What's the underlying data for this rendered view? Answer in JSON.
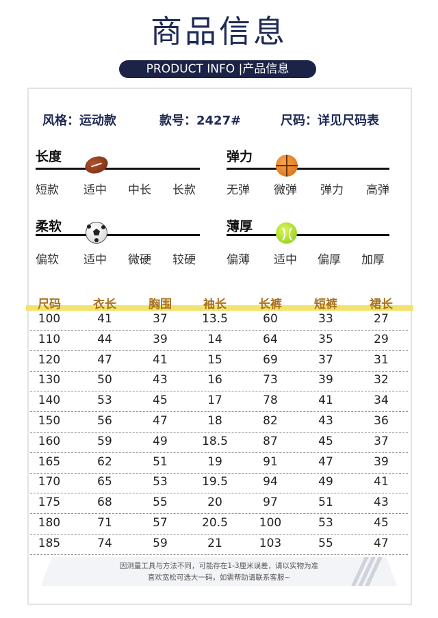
{
  "header": {
    "title": "商品信息",
    "subtitle": "PRODUCT INFO |产品信息"
  },
  "specs": {
    "style": "风格：运动款",
    "model": "款号：2427#",
    "size": "尺码：详见尺码表"
  },
  "attributes": {
    "length": {
      "title": "长度",
      "options": [
        "短款",
        "适中",
        "中长",
        "长款"
      ],
      "selected": "适中",
      "ball": "football-icon"
    },
    "elasticity": {
      "title": "弹力",
      "options": [
        "无弹",
        "微弹",
        "弹力",
        "高弹"
      ],
      "selected": "微弹",
      "ball": "basketball-icon"
    },
    "softness": {
      "title": "柔软",
      "options": [
        "偏软",
        "适中",
        "微硬",
        "较硬"
      ],
      "selected": "适中",
      "ball": "soccer-ball-icon"
    },
    "thickness": {
      "title": "薄厚",
      "options": [
        "偏薄",
        "适中",
        "偏厚",
        "加厚"
      ],
      "selected": "适中",
      "ball": "tennis-ball-icon"
    }
  },
  "size_table": {
    "headers": [
      "尺码",
      "衣长",
      "胸围",
      "袖长",
      "长裤",
      "短裤",
      "裙长"
    ],
    "rows": [
      [
        "100",
        "41",
        "37",
        "13.5",
        "60",
        "33",
        "27"
      ],
      [
        "110",
        "44",
        "39",
        "14",
        "64",
        "35",
        "29"
      ],
      [
        "120",
        "47",
        "41",
        "15",
        "69",
        "37",
        "31"
      ],
      [
        "130",
        "50",
        "43",
        "16",
        "73",
        "39",
        "32"
      ],
      [
        "140",
        "53",
        "45",
        "17",
        "78",
        "41",
        "34"
      ],
      [
        "150",
        "56",
        "47",
        "18",
        "82",
        "43",
        "36"
      ],
      [
        "160",
        "59",
        "49",
        "18.5",
        "87",
        "45",
        "37"
      ],
      [
        "165",
        "62",
        "51",
        "19",
        "91",
        "47",
        "39"
      ],
      [
        "170",
        "65",
        "53",
        "19.5",
        "94",
        "49",
        "41"
      ],
      [
        "175",
        "68",
        "55",
        "20",
        "97",
        "51",
        "43"
      ],
      [
        "180",
        "71",
        "57",
        "20.5",
        "100",
        "53",
        "45"
      ],
      [
        "185",
        "74",
        "59",
        "21",
        "103",
        "55",
        "47"
      ]
    ]
  },
  "note": {
    "line1": "因测量工具与方法不同，可能存在1-3厘米误差，请以实物为准",
    "line2": "喜欢宽松可选大一码，如需帮助请联系客服~"
  },
  "colors": {
    "navy": "#1b2347",
    "highlight": "#f3e36a",
    "header_text": "#a8731e"
  }
}
